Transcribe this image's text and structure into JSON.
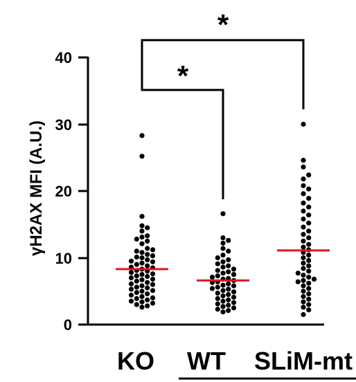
{
  "chart_data": {
    "type": "scatter",
    "ylabel": "γH2AX MFI (A.U.)",
    "ylim": [
      0,
      40
    ],
    "yticks": [
      0,
      10,
      20,
      30,
      40
    ],
    "categories": [
      "KO",
      "WT",
      "SLiM-mt"
    ],
    "series": [
      {
        "category": "KO",
        "mean": 8.3,
        "values": [
          28.3,
          25.2,
          16.2,
          14.8,
          14.5,
          14.0,
          13.3,
          13.1,
          12.8,
          12.5,
          12.1,
          11.4,
          11.2,
          11.0,
          10.8,
          10.5,
          10.3,
          10.1,
          10.0,
          9.7,
          9.5,
          9.4,
          9.2,
          9.0,
          8.8,
          8.6,
          8.5,
          8.3,
          8.1,
          8.0,
          7.8,
          7.6,
          7.5,
          7.3,
          7.2,
          7.0,
          6.8,
          6.7,
          6.5,
          6.3,
          6.1,
          6.0,
          5.8,
          5.6,
          5.5,
          5.3,
          5.1,
          5.0,
          4.8,
          4.6,
          4.4,
          4.2,
          4.0,
          3.9,
          3.7,
          3.5,
          3.4,
          3.2,
          3.0,
          2.8,
          2.6
        ]
      },
      {
        "category": "WT",
        "mean": 6.6,
        "values": [
          16.6,
          13.0,
          12.6,
          12.2,
          11.4,
          11.0,
          10.4,
          10.0,
          9.7,
          9.4,
          9.1,
          8.8,
          8.6,
          8.3,
          8.1,
          7.9,
          7.7,
          7.5,
          7.3,
          7.1,
          6.9,
          6.8,
          6.6,
          6.4,
          6.3,
          6.1,
          5.9,
          5.8,
          5.6,
          5.4,
          5.3,
          5.1,
          4.9,
          4.7,
          4.5,
          4.3,
          4.1,
          3.9,
          3.7,
          3.5,
          3.3,
          3.1,
          2.9,
          2.7,
          2.5,
          2.3,
          2.1,
          1.9
        ]
      },
      {
        "category": "SLiM-mt",
        "mean": 11.1,
        "values": [
          30.0,
          24.6,
          23.6,
          22.4,
          21.8,
          20.8,
          20.3,
          19.6,
          18.9,
          18.2,
          17.6,
          17.0,
          16.4,
          15.8,
          15.2,
          14.6,
          14.0,
          13.5,
          13.0,
          12.5,
          12.0,
          11.6,
          11.2,
          10.8,
          10.4,
          10.0,
          9.6,
          9.2,
          8.8,
          8.4,
          8.0,
          7.7,
          7.4,
          7.1,
          6.8,
          6.6,
          6.4,
          6.2,
          5.8,
          5.4,
          5.0,
          4.6,
          4.2,
          3.8,
          3.4,
          3.0,
          2.6,
          2.2,
          1.5
        ]
      }
    ],
    "comparisons": [
      {
        "from": "KO",
        "to": "WT",
        "label": "*"
      },
      {
        "from": "KO",
        "to": "SLiM-mt",
        "label": "*"
      }
    ]
  },
  "colors": {
    "dots": "#000000",
    "mean_line": "#e0141e"
  }
}
